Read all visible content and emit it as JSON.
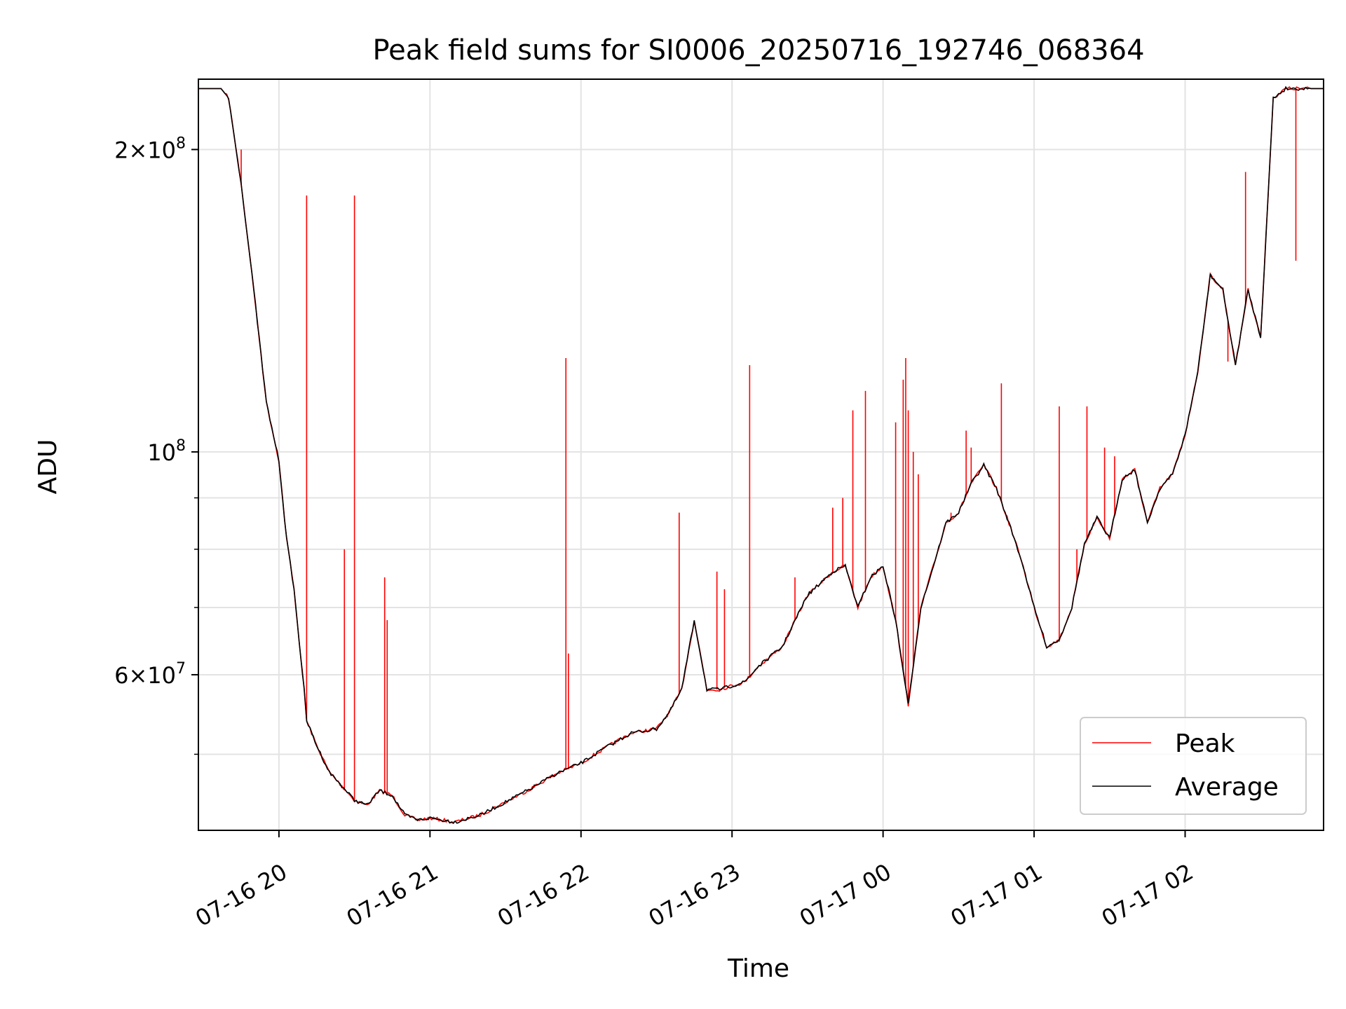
{
  "chart_data": {
    "type": "line",
    "title": "Peak field sums for SI0006_20250716_192746_068364",
    "xlabel": "Time",
    "ylabel": "ADU",
    "y_scale": "log",
    "ylim": [
      42000000,
      235000000
    ],
    "xlim": [
      "2025-07-16 19:28",
      "2025-07-17 02:55"
    ],
    "grid": true,
    "legend_position": "lower-right",
    "x_ticks": [
      {
        "t": "2025-07-16 20:00",
        "label": "07-16 20"
      },
      {
        "t": "2025-07-16 21:00",
        "label": "07-16 21"
      },
      {
        "t": "2025-07-16 22:00",
        "label": "07-16 22"
      },
      {
        "t": "2025-07-16 23:00",
        "label": "07-16 23"
      },
      {
        "t": "2025-07-17 00:00",
        "label": "07-17 00"
      },
      {
        "t": "2025-07-17 01:00",
        "label": "07-17 01"
      },
      {
        "t": "2025-07-17 02:00",
        "label": "07-17 02"
      }
    ],
    "y_major_ticks": [
      {
        "value": 60000000,
        "mant": "6",
        "exp": "7"
      },
      {
        "value": 100000000,
        "mant": "",
        "exp": "8"
      },
      {
        "value": 200000000,
        "mant": "2",
        "exp": "8"
      }
    ],
    "y_minor_ticks": [
      50000000,
      70000000,
      80000000,
      90000000
    ],
    "series": [
      {
        "name": "Average",
        "color": "#000000",
        "x": [
          "2025-07-16 19:28",
          "2025-07-16 19:37",
          "2025-07-16 19:40",
          "2025-07-16 19:45",
          "2025-07-16 19:50",
          "2025-07-16 19:55",
          "2025-07-16 20:00",
          "2025-07-16 20:03",
          "2025-07-16 20:06",
          "2025-07-16 20:08",
          "2025-07-16 20:10",
          "2025-07-16 20:11",
          "2025-07-16 20:15",
          "2025-07-16 20:20",
          "2025-07-16 20:25",
          "2025-07-16 20:30",
          "2025-07-16 20:35",
          "2025-07-16 20:40",
          "2025-07-16 20:45",
          "2025-07-16 20:50",
          "2025-07-16 20:55",
          "2025-07-16 21:00",
          "2025-07-16 21:05",
          "2025-07-16 21:10",
          "2025-07-16 21:20",
          "2025-07-16 21:30",
          "2025-07-16 21:40",
          "2025-07-16 21:50",
          "2025-07-16 22:00",
          "2025-07-16 22:10",
          "2025-07-16 22:20",
          "2025-07-16 22:30",
          "2025-07-16 22:35",
          "2025-07-16 22:40",
          "2025-07-16 22:45",
          "2025-07-16 22:50",
          "2025-07-16 22:55",
          "2025-07-16 23:00",
          "2025-07-16 23:05",
          "2025-07-16 23:10",
          "2025-07-16 23:20",
          "2025-07-16 23:30",
          "2025-07-16 23:40",
          "2025-07-16 23:45",
          "2025-07-16 23:50",
          "2025-07-16 23:55",
          "2025-07-17 00:00",
          "2025-07-17 00:05",
          "2025-07-17 00:10",
          "2025-07-17 00:15",
          "2025-07-17 00:20",
          "2025-07-17 00:25",
          "2025-07-17 00:30",
          "2025-07-17 00:35",
          "2025-07-17 00:40",
          "2025-07-17 00:45",
          "2025-07-17 00:50",
          "2025-07-17 00:55",
          "2025-07-17 01:00",
          "2025-07-17 01:05",
          "2025-07-17 01:10",
          "2025-07-17 01:15",
          "2025-07-17 01:20",
          "2025-07-17 01:25",
          "2025-07-17 01:30",
          "2025-07-17 01:35",
          "2025-07-17 01:40",
          "2025-07-17 01:45",
          "2025-07-17 01:50",
          "2025-07-17 01:55",
          "2025-07-17 02:00",
          "2025-07-17 02:05",
          "2025-07-17 02:10",
          "2025-07-17 02:15",
          "2025-07-17 02:20",
          "2025-07-17 02:25",
          "2025-07-17 02:30",
          "2025-07-17 02:35",
          "2025-07-17 02:40",
          "2025-07-17 02:45",
          "2025-07-17 02:50",
          "2025-07-17 02:55"
        ],
        "values": [
          230000000,
          230000000,
          225000000,
          185000000,
          145000000,
          112000000,
          98000000,
          82000000,
          73000000,
          65000000,
          58000000,
          54000000,
          51000000,
          48000000,
          46500000,
          45000000,
          44500000,
          46000000,
          45500000,
          43500000,
          43000000,
          43200000,
          43000000,
          42800000,
          43500000,
          44800000,
          46200000,
          47800000,
          49000000,
          50800000,
          52500000,
          53000000,
          55000000,
          58000000,
          68000000,
          58000000,
          58000000,
          58500000,
          59000000,
          61000000,
          64000000,
          72000000,
          76000000,
          77000000,
          70000000,
          75000000,
          77000000,
          68000000,
          56000000,
          70000000,
          77000000,
          85000000,
          87000000,
          93000000,
          97000000,
          92000000,
          85000000,
          78000000,
          70000000,
          64000000,
          65000000,
          70000000,
          81000000,
          86000000,
          82000000,
          94000000,
          96000000,
          85000000,
          92000000,
          95000000,
          104000000,
          120000000,
          150000000,
          145000000,
          122000000,
          145000000,
          130000000,
          225000000,
          230000000,
          230000000,
          230000000,
          230000000
        ]
      },
      {
        "name": "Peak",
        "color": "#ff0000",
        "spikes": [
          {
            "t": "2025-07-16 19:45",
            "value": 200000000
          },
          {
            "t": "2025-07-16 20:11",
            "value": 180000000
          },
          {
            "t": "2025-07-16 20:26",
            "value": 80000000
          },
          {
            "t": "2025-07-16 20:30",
            "value": 180000000
          },
          {
            "t": "2025-07-16 20:42",
            "value": 75000000
          },
          {
            "t": "2025-07-16 20:43",
            "value": 68000000
          },
          {
            "t": "2025-07-16 21:54",
            "value": 124000000
          },
          {
            "t": "2025-07-16 21:55",
            "value": 63000000
          },
          {
            "t": "2025-07-16 22:39",
            "value": 87000000
          },
          {
            "t": "2025-07-16 22:54",
            "value": 76000000
          },
          {
            "t": "2025-07-16 22:57",
            "value": 73000000
          },
          {
            "t": "2025-07-16 23:07",
            "value": 122000000
          },
          {
            "t": "2025-07-16 23:25",
            "value": 75000000
          },
          {
            "t": "2025-07-16 23:40",
            "value": 88000000
          },
          {
            "t": "2025-07-16 23:44",
            "value": 90000000
          },
          {
            "t": "2025-07-16 23:48",
            "value": 110000000
          },
          {
            "t": "2025-07-16 23:53",
            "value": 115000000
          },
          {
            "t": "2025-07-17 00:05",
            "value": 107000000
          },
          {
            "t": "2025-07-17 00:08",
            "value": 118000000
          },
          {
            "t": "2025-07-17 00:09",
            "value": 124000000
          },
          {
            "t": "2025-07-17 00:10",
            "value": 110000000
          },
          {
            "t": "2025-07-17 00:12",
            "value": 100000000
          },
          {
            "t": "2025-07-17 00:14",
            "value": 95000000
          },
          {
            "t": "2025-07-17 00:27",
            "value": 87000000
          },
          {
            "t": "2025-07-17 00:33",
            "value": 105000000
          },
          {
            "t": "2025-07-17 00:35",
            "value": 101000000
          },
          {
            "t": "2025-07-17 00:47",
            "value": 117000000
          },
          {
            "t": "2025-07-17 01:10",
            "value": 111000000
          },
          {
            "t": "2025-07-17 01:17",
            "value": 80000000
          },
          {
            "t": "2025-07-17 01:21",
            "value": 111000000
          },
          {
            "t": "2025-07-17 01:28",
            "value": 101000000
          },
          {
            "t": "2025-07-17 01:32",
            "value": 99000000
          },
          {
            "t": "2025-07-17 02:17",
            "value": 123000000
          },
          {
            "t": "2025-07-17 02:24",
            "value": 190000000
          },
          {
            "t": "2025-07-17 02:44",
            "value": 155000000
          }
        ]
      }
    ]
  }
}
